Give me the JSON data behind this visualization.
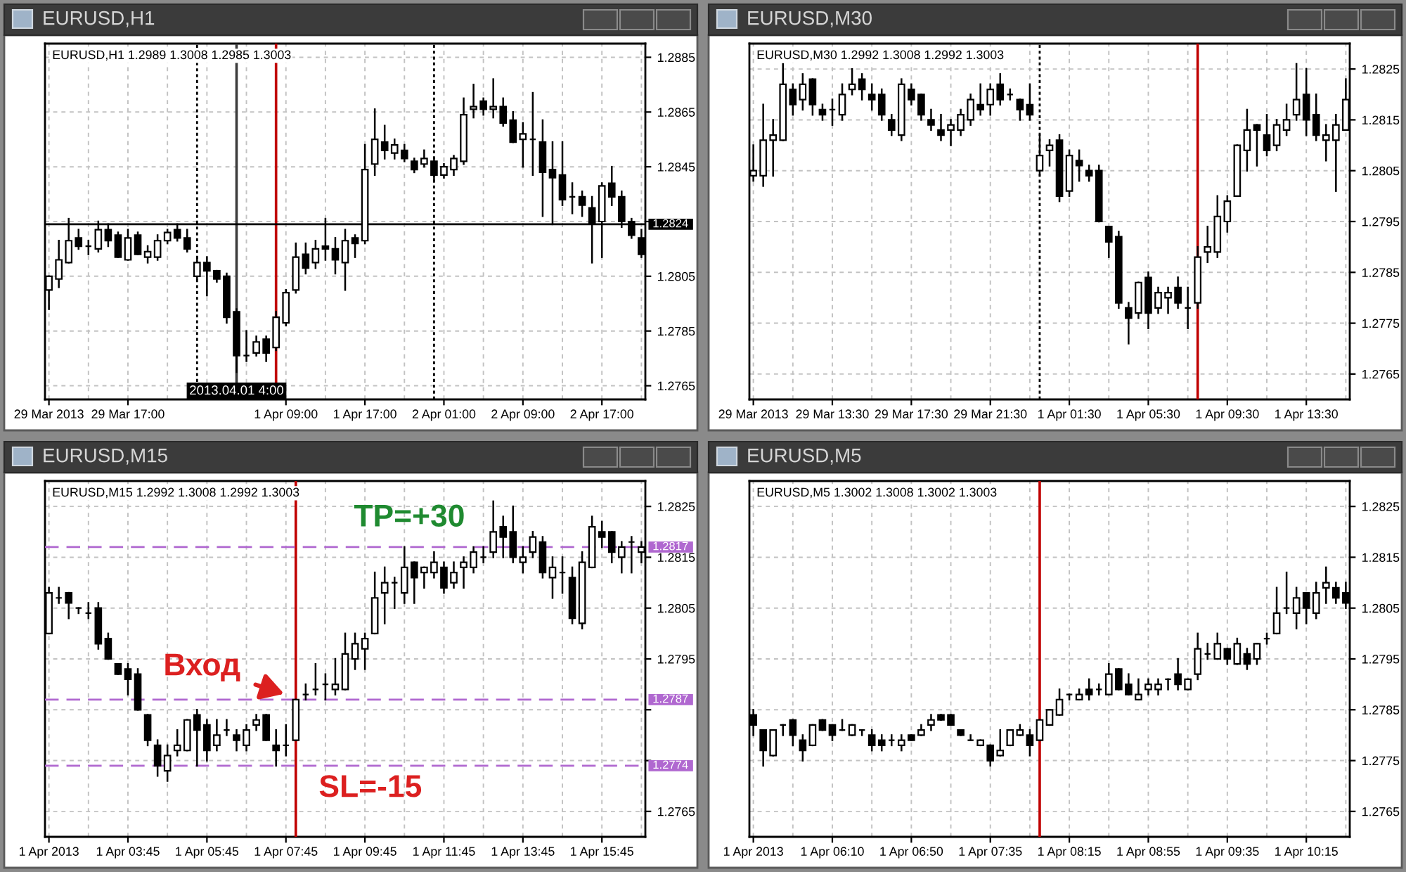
{
  "chart_data": [
    {
      "type": "candlestick",
      "title": "EURUSD,H1",
      "subtitle": "EURUSD,H1 1.2989 1.3008 1.2985 1.3003",
      "color": "#000000",
      "grid": true,
      "categories": [
        "29 Mar 2013",
        null,
        null,
        null,
        null,
        null,
        null,
        null,
        "29 Mar 17:00",
        null,
        null,
        null,
        null,
        null,
        null,
        null,
        null,
        null,
        null,
        null,
        null,
        null,
        null,
        null,
        "1 Apr 09:00",
        null,
        null,
        null,
        null,
        null,
        null,
        null,
        "1 Apr 17:00",
        null,
        null,
        null,
        null,
        null,
        null,
        null,
        "2 Apr 01:00",
        null,
        null,
        null,
        null,
        null,
        null,
        null,
        "2 Apr 09:00",
        null,
        null,
        null,
        null,
        null,
        null,
        null,
        "2 Apr 17:00",
        null,
        null,
        null,
        null
      ],
      "ohlc": [
        [
          1.28,
          1.2805,
          1.2793,
          1.2805
        ],
        [
          1.2804,
          1.2818,
          1.2801,
          1.2811
        ],
        [
          1.281,
          1.2826,
          1.281,
          1.2818
        ],
        [
          1.2819,
          1.2822,
          1.2815,
          1.2816
        ],
        [
          1.2816,
          1.2818,
          1.2813,
          1.2816
        ],
        [
          1.2815,
          1.2825,
          1.2814,
          1.2822
        ],
        [
          1.2822,
          1.2824,
          1.2816,
          1.2818
        ],
        [
          1.282,
          1.2821,
          1.2812,
          1.2812
        ],
        [
          1.2811,
          1.2822,
          1.2811,
          1.2819
        ],
        [
          1.282,
          1.2821,
          1.2813,
          1.2813
        ],
        [
          1.2812,
          1.2816,
          1.281,
          1.2814
        ],
        [
          1.2812,
          1.282,
          1.2811,
          1.2818
        ],
        [
          1.2818,
          1.2822,
          1.2817,
          1.2821
        ],
        [
          1.2822,
          1.2824,
          1.2818,
          1.2819
        ],
        [
          1.2819,
          1.2822,
          1.2814,
          1.2815
        ],
        [
          1.2805,
          1.2812,
          1.2804,
          1.281
        ],
        [
          1.281,
          1.2812,
          1.2798,
          1.2807
        ],
        [
          1.2807,
          1.2807,
          1.2803,
          1.2804
        ],
        [
          1.2805,
          1.2806,
          1.2788,
          1.279
        ],
        [
          1.2792,
          1.2793,
          1.277,
          1.2776
        ],
        [
          1.2776,
          1.2785,
          1.2774,
          1.2776
        ],
        [
          1.2777,
          1.2783,
          1.2776,
          1.2781
        ],
        [
          1.2782,
          1.2783,
          1.2774,
          1.2777
        ],
        [
          1.2779,
          1.2792,
          1.2778,
          1.279
        ],
        [
          1.2788,
          1.28,
          1.2787,
          1.2799
        ],
        [
          1.28,
          1.2817,
          1.2799,
          1.2812
        ],
        [
          1.2813,
          1.2817,
          1.2806,
          1.2808
        ],
        [
          1.281,
          1.2818,
          1.2808,
          1.2815
        ],
        [
          1.2816,
          1.2826,
          1.2811,
          1.2815
        ],
        [
          1.2815,
          1.2819,
          1.2806,
          1.2811
        ],
        [
          1.281,
          1.2822,
          1.28,
          1.2818
        ],
        [
          1.2819,
          1.282,
          1.2812,
          1.2817
        ],
        [
          1.2818,
          1.2853,
          1.2817,
          1.2844
        ],
        [
          1.2846,
          1.2866,
          1.2842,
          1.2855
        ],
        [
          1.2854,
          1.286,
          1.2848,
          1.2851
        ],
        [
          1.285,
          1.2855,
          1.2848,
          1.2853
        ],
        [
          1.2851,
          1.2853,
          1.2847,
          1.2848
        ],
        [
          1.2847,
          1.2848,
          1.2843,
          1.2844
        ],
        [
          1.2846,
          1.2851,
          1.2845,
          1.2848
        ],
        [
          1.2847,
          1.2848,
          1.284,
          1.2842
        ],
        [
          1.2842,
          1.2846,
          1.2841,
          1.2845
        ],
        [
          1.2844,
          1.2849,
          1.2842,
          1.2848
        ],
        [
          1.2847,
          1.287,
          1.2846,
          1.2864
        ],
        [
          1.2866,
          1.2875,
          1.2863,
          1.2867
        ],
        [
          1.2869,
          1.287,
          1.2864,
          1.2866
        ],
        [
          1.2866,
          1.2877,
          1.2863,
          1.2867
        ],
        [
          1.2867,
          1.287,
          1.286,
          1.2861
        ],
        [
          1.2862,
          1.2865,
          1.2854,
          1.2854
        ],
        [
          1.2855,
          1.2861,
          1.2845,
          1.2857
        ],
        [
          1.2855,
          1.2872,
          1.2842,
          1.2855
        ],
        [
          1.2854,
          1.2862,
          1.2827,
          1.2843
        ],
        [
          1.2844,
          1.2854,
          1.2824,
          1.2841
        ],
        [
          1.2842,
          1.2854,
          1.2831,
          1.2833
        ],
        [
          1.2834,
          1.2839,
          1.2828,
          1.2834
        ],
        [
          1.2834,
          1.2836,
          1.2827,
          1.2831
        ],
        [
          1.283,
          1.2834,
          1.281,
          1.2824
        ],
        [
          1.2825,
          1.2839,
          1.2812,
          1.2838
        ],
        [
          1.2839,
          1.2845,
          1.2831,
          1.2834
        ],
        [
          1.2834,
          1.2836,
          1.2823,
          1.2825
        ],
        [
          1.2825,
          1.2826,
          1.2819,
          1.282
        ],
        [
          1.2819,
          1.2822,
          1.2812,
          1.2813
        ]
      ],
      "ylim": [
        1.276,
        1.289
      ],
      "yticks": [
        1.2765,
        1.2785,
        1.2805,
        {
          "value": 1.2825,
          "label": null
        },
        1.2845,
        1.2865,
        1.2885
      ],
      "ref_lines": [
        {
          "axis": "y",
          "value": 1.2824,
          "label": "1.2824",
          "color": "#000000"
        }
      ],
      "annotations": [
        "2013.04.01 4:00"
      ]
    },
    {
      "type": "candlestick",
      "title": "EURUSD,M30",
      "subtitle": "EURUSD,M30 1.2992 1.3008 1.2992 1.3003",
      "color": "#000000",
      "grid": true,
      "categories": [
        "29 Mar 2013",
        null,
        null,
        null,
        null,
        null,
        null,
        null,
        "29 Mar 13:30",
        null,
        null,
        null,
        null,
        null,
        null,
        null,
        "29 Mar 17:30",
        null,
        null,
        null,
        null,
        null,
        null,
        null,
        "29 Mar 21:30",
        null,
        null,
        null,
        null,
        null,
        null,
        null,
        "1 Apr 01:30",
        null,
        null,
        null,
        null,
        null,
        null,
        null,
        "1 Apr 05:30",
        null,
        null,
        null,
        null,
        null,
        null,
        null,
        "1 Apr 09:30",
        null,
        null,
        null,
        null,
        null,
        null,
        null,
        "1 Apr 13:30",
        null,
        null,
        null,
        null
      ],
      "ohlc": [
        [
          1.2804,
          1.281,
          1.2803,
          1.2805
        ],
        [
          1.2804,
          1.2818,
          1.2802,
          1.2811
        ],
        [
          1.2811,
          1.2815,
          1.2804,
          1.2812
        ],
        [
          1.2811,
          1.2826,
          1.2811,
          1.2822
        ],
        [
          1.2821,
          1.2822,
          1.2816,
          1.2818
        ],
        [
          1.2819,
          1.2824,
          1.2817,
          1.2822
        ],
        [
          1.2823,
          1.2823,
          1.2816,
          1.2818
        ],
        [
          1.2817,
          1.2818,
          1.2815,
          1.2816
        ],
        [
          1.2817,
          1.2819,
          1.2814,
          1.2817
        ],
        [
          1.2816,
          1.2822,
          1.2815,
          1.282
        ],
        [
          1.2821,
          1.2825,
          1.282,
          1.2822
        ],
        [
          1.2823,
          1.2824,
          1.2819,
          1.2821
        ],
        [
          1.282,
          1.2822,
          1.2817,
          1.2819
        ],
        [
          1.282,
          1.2821,
          1.2815,
          1.2816
        ],
        [
          1.2815,
          1.2816,
          1.2812,
          1.2813
        ],
        [
          1.2812,
          1.2823,
          1.2811,
          1.2822
        ],
        [
          1.2821,
          1.2822,
          1.2818,
          1.2819
        ],
        [
          1.282,
          1.282,
          1.2815,
          1.2816
        ],
        [
          1.2815,
          1.2817,
          1.2813,
          1.2814
        ],
        [
          1.2813,
          1.2816,
          1.2811,
          1.2812
        ],
        [
          1.2813,
          1.2815,
          1.281,
          1.2814
        ],
        [
          1.2813,
          1.2817,
          1.2812,
          1.2816
        ],
        [
          1.2815,
          1.282,
          1.2814,
          1.2819
        ],
        [
          1.2818,
          1.2822,
          1.2816,
          1.2817
        ],
        [
          1.2818,
          1.2822,
          1.2816,
          1.2821
        ],
        [
          1.2822,
          1.2824,
          1.2818,
          1.2819
        ],
        [
          1.282,
          1.2821,
          1.2819,
          1.282
        ],
        [
          1.2819,
          1.2819,
          1.2815,
          1.2817
        ],
        [
          1.2818,
          1.2822,
          1.2815,
          1.2816
        ],
        [
          1.2805,
          1.2812,
          1.2804,
          1.2808
        ],
        [
          1.2809,
          1.2811,
          1.2806,
          1.281
        ],
        [
          1.2811,
          1.2812,
          1.2799,
          1.28
        ],
        [
          1.2801,
          1.2809,
          1.28,
          1.2808
        ],
        [
          1.2807,
          1.2809,
          1.2803,
          1.2806
        ],
        [
          1.2805,
          1.2806,
          1.2803,
          1.2804
        ],
        [
          1.2805,
          1.2806,
          1.2795,
          1.2795
        ],
        [
          1.2794,
          1.2794,
          1.2788,
          1.2791
        ],
        [
          1.2792,
          1.2793,
          1.2778,
          1.2779
        ],
        [
          1.2778,
          1.2779,
          1.2771,
          1.2776
        ],
        [
          1.2777,
          1.2783,
          1.2776,
          1.2783
        ],
        [
          1.2784,
          1.2785,
          1.2774,
          1.2777
        ],
        [
          1.2778,
          1.2782,
          1.2777,
          1.2781
        ],
        [
          1.278,
          1.2782,
          1.2777,
          1.2781
        ],
        [
          1.2782,
          1.2784,
          1.2778,
          1.2779
        ],
        [
          1.2778,
          1.2782,
          1.2774,
          1.2778
        ],
        [
          1.2779,
          1.279,
          1.2778,
          1.2788
        ],
        [
          1.2789,
          1.2794,
          1.2787,
          1.279
        ],
        [
          1.2789,
          1.28,
          1.2788,
          1.2796
        ],
        [
          1.2795,
          1.28,
          1.2793,
          1.2799
        ],
        [
          1.28,
          1.281,
          1.28,
          1.281
        ],
        [
          1.2809,
          1.2817,
          1.2805,
          1.2813
        ],
        [
          1.2814,
          1.2814,
          1.2806,
          1.2813
        ],
        [
          1.2812,
          1.2816,
          1.2808,
          1.2809
        ],
        [
          1.281,
          1.2815,
          1.2809,
          1.2814
        ],
        [
          1.2813,
          1.2818,
          1.2812,
          1.2815
        ],
        [
          1.2816,
          1.2826,
          1.2815,
          1.2819
        ],
        [
          1.282,
          1.2825,
          1.2812,
          1.2815
        ],
        [
          1.2816,
          1.282,
          1.2811,
          1.2812
        ],
        [
          1.2811,
          1.2814,
          1.2807,
          1.2812
        ],
        [
          1.2811,
          1.2816,
          1.2801,
          1.2814
        ],
        [
          1.2813,
          1.2823,
          1.2813,
          1.2819
        ]
      ],
      "ylim": [
        1.276,
        1.283
      ],
      "yticks": [
        1.2765,
        1.2775,
        1.2785,
        1.2795,
        1.2805,
        1.2815,
        1.2825
      ]
    },
    {
      "type": "candlestick",
      "title": "EURUSD,M15",
      "subtitle": "EURUSD,M15 1.2992 1.3008 1.2992 1.3003",
      "color": "#000000",
      "grid": true,
      "categories": [
        "1 Apr 2013",
        null,
        null,
        null,
        null,
        null,
        null,
        null,
        "1 Apr 03:45",
        null,
        null,
        null,
        null,
        null,
        null,
        null,
        "1 Apr 05:45",
        null,
        null,
        null,
        null,
        null,
        null,
        null,
        "1 Apr 07:45",
        null,
        null,
        null,
        null,
        null,
        null,
        null,
        "1 Apr 09:45",
        null,
        null,
        null,
        null,
        null,
        null,
        null,
        "1 Apr 11:45",
        null,
        null,
        null,
        null,
        null,
        null,
        null,
        "1 Apr 13:45",
        null,
        null,
        null,
        null,
        null,
        null,
        null,
        "1 Apr 15:45",
        null,
        null,
        null,
        null
      ],
      "ohlc": [
        [
          1.28,
          1.2809,
          1.28,
          1.2808
        ],
        [
          1.2807,
          1.2809,
          1.2806,
          1.2807
        ],
        [
          1.2808,
          1.2808,
          1.2803,
          1.2806
        ],
        [
          1.2805,
          1.2805,
          1.2804,
          1.2805
        ],
        [
          1.2804,
          1.2806,
          1.2803,
          1.2804
        ],
        [
          1.2805,
          1.2806,
          1.2797,
          1.2798
        ],
        [
          1.2799,
          1.28,
          1.2795,
          1.2795
        ],
        [
          1.2794,
          1.2794,
          1.2792,
          1.2792
        ],
        [
          1.2793,
          1.2794,
          1.2788,
          1.2791
        ],
        [
          1.2792,
          1.2793,
          1.2785,
          1.2785
        ],
        [
          1.2784,
          1.2784,
          1.2778,
          1.2779
        ],
        [
          1.2778,
          1.2779,
          1.2772,
          1.2774
        ],
        [
          1.2773,
          1.2778,
          1.2771,
          1.2776
        ],
        [
          1.2777,
          1.2781,
          1.2776,
          1.2778
        ],
        [
          1.2777,
          1.2783,
          1.2777,
          1.2783
        ],
        [
          1.2784,
          1.2785,
          1.2774,
          1.2781
        ],
        [
          1.2782,
          1.2783,
          1.2775,
          1.2777
        ],
        [
          1.2778,
          1.2783,
          1.2777,
          1.278
        ],
        [
          1.2781,
          1.2783,
          1.278,
          1.2781
        ],
        [
          1.278,
          1.2781,
          1.2777,
          1.2779
        ],
        [
          1.2778,
          1.2782,
          1.2777,
          1.2781
        ],
        [
          1.2782,
          1.2784,
          1.2781,
          1.2783
        ],
        [
          1.2784,
          1.2784,
          1.2779,
          1.2779
        ],
        [
          1.2778,
          1.2781,
          1.2774,
          1.2777
        ],
        [
          1.2778,
          1.2782,
          1.2776,
          1.2778
        ],
        [
          1.2779,
          1.2787,
          1.2779,
          1.2787
        ],
        [
          1.2788,
          1.279,
          1.2787,
          1.2788
        ],
        [
          1.2789,
          1.2794,
          1.2788,
          1.2789
        ],
        [
          1.279,
          1.2792,
          1.2787,
          1.279
        ],
        [
          1.2789,
          1.2795,
          1.2788,
          1.279
        ],
        [
          1.2789,
          1.28,
          1.2789,
          1.2796
        ],
        [
          1.2795,
          1.28,
          1.2793,
          1.2798
        ],
        [
          1.2797,
          1.28,
          1.2793,
          1.2799
        ],
        [
          1.28,
          1.2812,
          1.28,
          1.2807
        ],
        [
          1.2808,
          1.2813,
          1.2802,
          1.281
        ],
        [
          1.281,
          1.2811,
          1.2805,
          1.281
        ],
        [
          1.2808,
          1.2817,
          1.2806,
          1.2813
        ],
        [
          1.2814,
          1.2814,
          1.2806,
          1.2811
        ],
        [
          1.2812,
          1.2813,
          1.2809,
          1.2813
        ],
        [
          1.2812,
          1.2816,
          1.2811,
          1.2814
        ],
        [
          1.2813,
          1.2814,
          1.2808,
          1.2809
        ],
        [
          1.281,
          1.2814,
          1.2809,
          1.2812
        ],
        [
          1.2813,
          1.2815,
          1.2809,
          1.2814
        ],
        [
          1.2813,
          1.2817,
          1.2812,
          1.2816
        ],
        [
          1.2815,
          1.2817,
          1.2814,
          1.2815
        ],
        [
          1.2816,
          1.2826,
          1.2815,
          1.282
        ],
        [
          1.2821,
          1.2823,
          1.2815,
          1.2819
        ],
        [
          1.282,
          1.2825,
          1.2814,
          1.2815
        ],
        [
          1.2814,
          1.2817,
          1.2812,
          1.2815
        ],
        [
          1.2816,
          1.282,
          1.2815,
          1.2819
        ],
        [
          1.2818,
          1.2819,
          1.2811,
          1.2812
        ],
        [
          1.2811,
          1.2815,
          1.2807,
          1.2813
        ],
        [
          1.2812,
          1.2815,
          1.2808,
          1.2812
        ],
        [
          1.2811,
          1.2813,
          1.2802,
          1.2803
        ],
        [
          1.2802,
          1.2816,
          1.2801,
          1.2814
        ],
        [
          1.2813,
          1.2823,
          1.2813,
          1.2821
        ],
        [
          1.282,
          1.2822,
          1.2817,
          1.2819
        ],
        [
          1.282,
          1.282,
          1.2814,
          1.2816
        ],
        [
          1.2815,
          1.2818,
          1.2812,
          1.2817
        ],
        [
          1.2818,
          1.2819,
          1.2812,
          1.2818
        ],
        [
          1.2816,
          1.2818,
          1.2814,
          1.2817
        ]
      ],
      "ylim": [
        1.276,
        1.283
      ],
      "yticks": [
        1.2765,
        {
          "value": 1.2775,
          "label": null
        },
        {
          "value": 1.2785,
          "label": null
        },
        1.2795,
        1.2805,
        1.2815,
        1.2825
      ],
      "ref_lines": [
        {
          "axis": "y",
          "value": 1.2817,
          "label": "1.2817",
          "color": "#b068d0",
          "line_style": "dashed"
        },
        {
          "axis": "y",
          "value": 1.2787,
          "label": "1.2787",
          "color": "#b068d0",
          "line_style": "dashed"
        },
        {
          "axis": "y",
          "value": 1.2774,
          "label": "1.2774",
          "color": "#b068d0",
          "line_style": "dashed"
        }
      ],
      "annotations": [
        "TP=+30",
        {
          "text": "Вход",
          "x": "1 Apr 07:45",
          "y": 1.2788
        },
        "SL=-15"
      ]
    },
    {
      "type": "candlestick",
      "title": "EURUSD,M5",
      "subtitle": "EURUSD,M5 1.3002 1.3008 1.3002 1.3003",
      "color": "#000000",
      "grid": true,
      "categories": [
        "1 Apr 2013",
        null,
        null,
        null,
        null,
        null,
        null,
        null,
        "1 Apr 06:10",
        null,
        null,
        null,
        null,
        null,
        null,
        null,
        "1 Apr 06:50",
        null,
        null,
        null,
        null,
        null,
        null,
        null,
        "1 Apr 07:35",
        null,
        null,
        null,
        null,
        null,
        null,
        null,
        "1 Apr 08:15",
        null,
        null,
        null,
        null,
        null,
        null,
        null,
        "1 Apr 08:55",
        null,
        null,
        null,
        null,
        null,
        null,
        null,
        "1 Apr 09:35",
        null,
        null,
        null,
        null,
        null,
        null,
        null,
        "1 Apr 10:15",
        null,
        null,
        null,
        null
      ],
      "ohlc": [
        [
          1.2784,
          1.2785,
          1.278,
          1.2782
        ],
        [
          1.2781,
          1.2781,
          1.2774,
          1.2777
        ],
        [
          1.2776,
          1.2781,
          1.2776,
          1.2781
        ],
        [
          1.2782,
          1.2782,
          1.278,
          1.2782
        ],
        [
          1.2783,
          1.2783,
          1.2778,
          1.278
        ],
        [
          1.2779,
          1.278,
          1.2775,
          1.2777
        ],
        [
          1.2778,
          1.2782,
          1.2778,
          1.2782
        ],
        [
          1.2783,
          1.2783,
          1.2781,
          1.2781
        ],
        [
          1.2782,
          1.2782,
          1.2779,
          1.278
        ],
        [
          1.2781,
          1.2783,
          1.2781,
          1.2781
        ],
        [
          1.278,
          1.2782,
          1.278,
          1.2782
        ],
        [
          1.2781,
          1.2781,
          1.278,
          1.2781
        ],
        [
          1.278,
          1.2781,
          1.2777,
          1.2778
        ],
        [
          1.2779,
          1.278,
          1.2777,
          1.2778
        ],
        [
          1.2779,
          1.278,
          1.2778,
          1.2779
        ],
        [
          1.2778,
          1.278,
          1.2777,
          1.2779
        ],
        [
          1.278,
          1.278,
          1.2779,
          1.2779
        ],
        [
          1.278,
          1.2782,
          1.278,
          1.2781
        ],
        [
          1.2782,
          1.2784,
          1.2781,
          1.2783
        ],
        [
          1.2784,
          1.2784,
          1.2783,
          1.2783
        ],
        [
          1.2784,
          1.2784,
          1.2782,
          1.2782
        ],
        [
          1.2781,
          1.2781,
          1.278,
          1.278
        ],
        [
          1.2779,
          1.278,
          1.2779,
          1.2779
        ],
        [
          1.2778,
          1.2779,
          1.2778,
          1.2779
        ],
        [
          1.2778,
          1.2778,
          1.2774,
          1.2775
        ],
        [
          1.2776,
          1.2781,
          1.2776,
          1.2777
        ],
        [
          1.2778,
          1.2781,
          1.2778,
          1.2781
        ],
        [
          1.278,
          1.2782,
          1.278,
          1.2781
        ],
        [
          1.278,
          1.2781,
          1.2776,
          1.2778
        ],
        [
          1.2779,
          1.2783,
          1.2779,
          1.2783
        ],
        [
          1.2782,
          1.2785,
          1.2782,
          1.2785
        ],
        [
          1.2784,
          1.2789,
          1.2784,
          1.2787
        ],
        [
          1.2788,
          1.2788,
          1.2787,
          1.2788
        ],
        [
          1.2787,
          1.2789,
          1.2787,
          1.2788
        ],
        [
          1.2789,
          1.2791,
          1.2787,
          1.2788
        ],
        [
          1.2789,
          1.279,
          1.2788,
          1.2789
        ],
        [
          1.2788,
          1.2794,
          1.2788,
          1.2792
        ],
        [
          1.2793,
          1.2793,
          1.2789,
          1.2789
        ],
        [
          1.279,
          1.2792,
          1.2788,
          1.2788
        ],
        [
          1.2787,
          1.2791,
          1.2787,
          1.2788
        ],
        [
          1.2789,
          1.2791,
          1.2788,
          1.279
        ],
        [
          1.2789,
          1.2791,
          1.2788,
          1.279
        ],
        [
          1.2791,
          1.2791,
          1.2789,
          1.2791
        ],
        [
          1.2792,
          1.2795,
          1.2789,
          1.279
        ],
        [
          1.2789,
          1.2791,
          1.2789,
          1.2791
        ],
        [
          1.2792,
          1.28,
          1.2791,
          1.2797
        ],
        [
          1.2796,
          1.2798,
          1.2795,
          1.2796
        ],
        [
          1.2795,
          1.28,
          1.2795,
          1.2798
        ],
        [
          1.2797,
          1.2797,
          1.2794,
          1.2795
        ],
        [
          1.2794,
          1.2799,
          1.2794,
          1.2798
        ],
        [
          1.2796,
          1.2797,
          1.2793,
          1.2794
        ],
        [
          1.2795,
          1.2798,
          1.2794,
          1.2798
        ],
        [
          1.2799,
          1.28,
          1.2798,
          1.2799
        ],
        [
          1.28,
          1.2809,
          1.28,
          1.2804
        ],
        [
          1.2805,
          1.2812,
          1.2804,
          1.2805
        ],
        [
          1.2804,
          1.2809,
          1.2801,
          1.2807
        ],
        [
          1.2808,
          1.2808,
          1.2802,
          1.2805
        ],
        [
          1.2804,
          1.281,
          1.2803,
          1.2808
        ],
        [
          1.2809,
          1.2813,
          1.2806,
          1.281
        ],
        [
          1.2809,
          1.281,
          1.2806,
          1.2807
        ],
        [
          1.2808,
          1.281,
          1.2805,
          1.2806
        ]
      ],
      "ylim": [
        1.276,
        1.283
      ],
      "yticks": [
        1.2765,
        1.2775,
        1.2785,
        1.2795,
        1.2805,
        1.2815,
        1.2825
      ]
    }
  ]
}
